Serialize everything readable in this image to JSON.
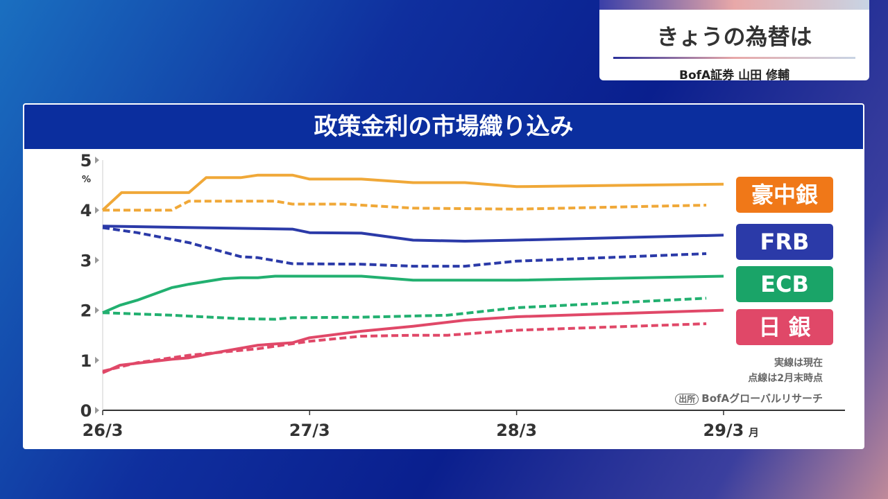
{
  "header": {
    "title": "きょうの為替は",
    "subtitle": "BofA証券  山田 修輔"
  },
  "chart_data": {
    "type": "line",
    "title": "政策金利の市場織り込み",
    "ylabel": "%",
    "xlabel": "月",
    "ylim": [
      0,
      5
    ],
    "yticks": [
      "0",
      "1",
      "2",
      "3",
      "4",
      "5"
    ],
    "x_unit": "months since 26/3",
    "xticks": [
      {
        "label": "26/3",
        "x": 0
      },
      {
        "label": "27/3",
        "x": 12
      },
      {
        "label": "28/3",
        "x": 24
      },
      {
        "label": "29/3",
        "x": 36
      }
    ],
    "series": [
      {
        "name": "豪中銀",
        "style": "solid",
        "color": "#f0a838",
        "points": [
          [
            0,
            4.0
          ],
          [
            1.1,
            4.35
          ],
          [
            5,
            4.35
          ],
          [
            6,
            4.65
          ],
          [
            8,
            4.65
          ],
          [
            9,
            4.7
          ],
          [
            11,
            4.7
          ],
          [
            12,
            4.62
          ],
          [
            15,
            4.62
          ],
          [
            18,
            4.55
          ],
          [
            21,
            4.55
          ],
          [
            24,
            4.47
          ],
          [
            36,
            4.52
          ]
        ]
      },
      {
        "name": "豪中銀",
        "style": "dashed",
        "color": "#f0a838",
        "points": [
          [
            0,
            4.0
          ],
          [
            4,
            4.0
          ],
          [
            5,
            4.18
          ],
          [
            10,
            4.18
          ],
          [
            11,
            4.12
          ],
          [
            14,
            4.12
          ],
          [
            18,
            4.04
          ],
          [
            24,
            4.02
          ],
          [
            35,
            4.1
          ]
        ]
      },
      {
        "name": "FRB",
        "style": "solid",
        "color": "#2b3aa8",
        "points": [
          [
            0,
            3.68
          ],
          [
            11,
            3.62
          ],
          [
            12,
            3.55
          ],
          [
            15,
            3.54
          ],
          [
            18,
            3.4
          ],
          [
            21,
            3.38
          ],
          [
            24,
            3.4
          ],
          [
            36,
            3.5
          ]
        ]
      },
      {
        "name": "FRB",
        "style": "dashed",
        "color": "#2b3aa8",
        "points": [
          [
            0,
            3.65
          ],
          [
            2,
            3.55
          ],
          [
            5,
            3.35
          ],
          [
            8,
            3.07
          ],
          [
            9,
            3.05
          ],
          [
            11,
            2.93
          ],
          [
            15,
            2.92
          ],
          [
            18,
            2.88
          ],
          [
            21,
            2.88
          ],
          [
            24,
            2.98
          ],
          [
            35,
            3.13
          ]
        ]
      },
      {
        "name": "ECB",
        "style": "solid",
        "color": "#22b070",
        "points": [
          [
            0,
            1.95
          ],
          [
            1,
            2.1
          ],
          [
            2,
            2.2
          ],
          [
            4,
            2.45
          ],
          [
            5,
            2.52
          ],
          [
            7,
            2.63
          ],
          [
            8,
            2.65
          ],
          [
            9,
            2.65
          ],
          [
            10,
            2.68
          ],
          [
            15,
            2.68
          ],
          [
            18,
            2.6
          ],
          [
            24,
            2.6
          ],
          [
            36,
            2.68
          ]
        ]
      },
      {
        "name": "ECB",
        "style": "dashed",
        "color": "#22b070",
        "points": [
          [
            0,
            1.95
          ],
          [
            4,
            1.9
          ],
          [
            8,
            1.83
          ],
          [
            10,
            1.82
          ],
          [
            11,
            1.85
          ],
          [
            15,
            1.86
          ],
          [
            20,
            1.9
          ],
          [
            24,
            2.05
          ],
          [
            35,
            2.24
          ]
        ]
      },
      {
        "name": "日 銀",
        "style": "solid",
        "color": "#e04868",
        "points": [
          [
            0,
            0.75
          ],
          [
            1,
            0.9
          ],
          [
            4,
            1.02
          ],
          [
            5,
            1.05
          ],
          [
            7,
            1.18
          ],
          [
            9,
            1.3
          ],
          [
            11,
            1.35
          ],
          [
            12,
            1.45
          ],
          [
            15,
            1.58
          ],
          [
            18,
            1.68
          ],
          [
            21,
            1.8
          ],
          [
            24,
            1.87
          ],
          [
            36,
            2.0
          ]
        ]
      },
      {
        "name": "日 銀",
        "style": "dashed",
        "color": "#e04868",
        "points": [
          [
            0,
            0.78
          ],
          [
            2,
            0.95
          ],
          [
            5,
            1.1
          ],
          [
            9,
            1.23
          ],
          [
            12,
            1.38
          ],
          [
            15,
            1.48
          ],
          [
            18,
            1.5
          ],
          [
            20,
            1.5
          ],
          [
            24,
            1.6
          ],
          [
            35,
            1.73
          ]
        ]
      }
    ],
    "legend": [
      {
        "label": "豪中銀",
        "color": "#f07818"
      },
      {
        "label": "FRB",
        "color": "#2b3aa8"
      },
      {
        "label": "ECB",
        "color": "#1aa468"
      },
      {
        "label": "日 銀",
        "color": "#e04868"
      }
    ],
    "annotations": [
      "実線は現在",
      "点線は2月末時点"
    ],
    "source_label": "出所",
    "source": "BofAグローバルリサーチ"
  }
}
